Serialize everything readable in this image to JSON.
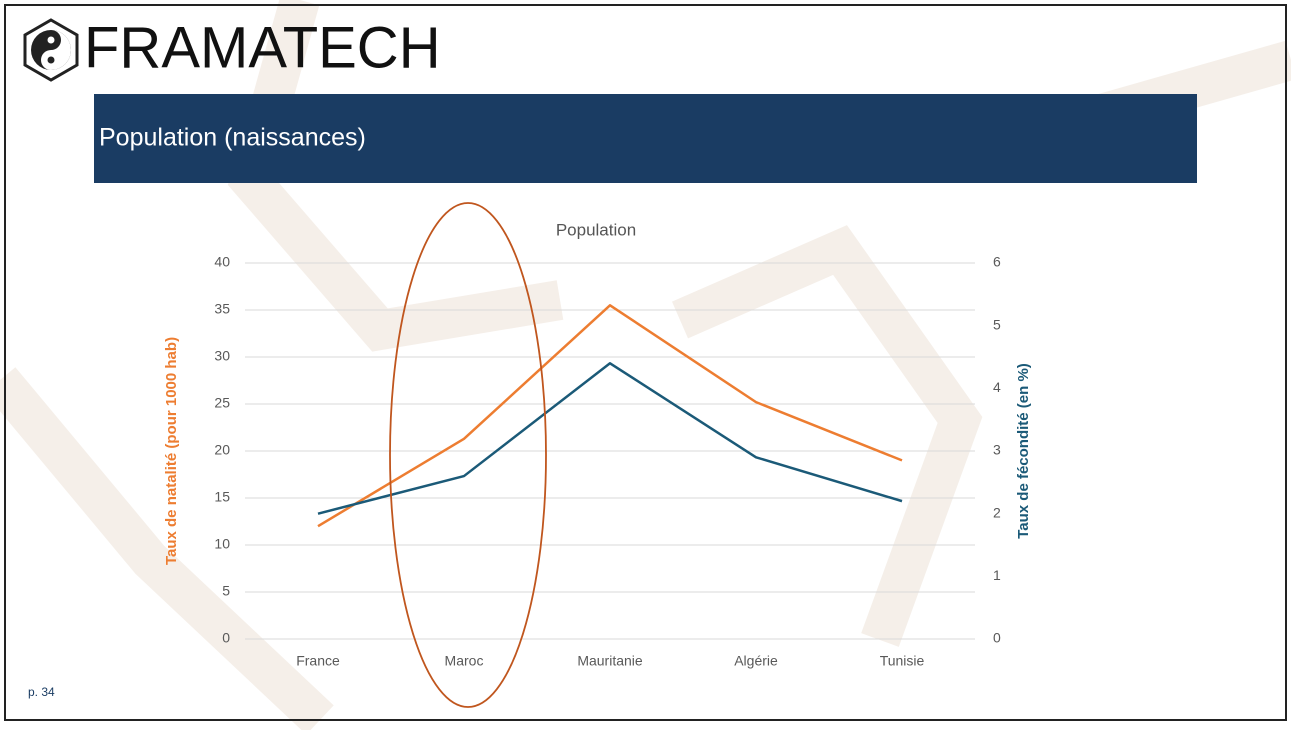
{
  "brand": "FRAMATECH",
  "slide_title": "Population (naissances)",
  "page_number": "p. 34",
  "chart_data": {
    "type": "line",
    "title": "Population",
    "categories": [
      "France",
      "Maroc",
      "Mauritanie",
      "Algérie",
      "Tunisie"
    ],
    "series": [
      {
        "name": "Taux de natalité (pour 1000 hab)",
        "color": "#ed7d31",
        "values": [
          12.0,
          21.3,
          35.5,
          25.2,
          19.0
        ]
      },
      {
        "name": "Taux de fécondité (en %)",
        "color": "#1b5a78",
        "axis": "y2",
        "values": [
          2.0,
          2.6,
          4.4,
          2.9,
          2.2
        ]
      }
    ],
    "ylabel": "Taux de natalité (pour 1000 hab)",
    "y2label": "Taux de fécondité (en %)",
    "ylim": [
      0,
      40
    ],
    "yticks": [
      0,
      5,
      10,
      15,
      20,
      25,
      30,
      35,
      40
    ],
    "y2lim": [
      0,
      6
    ],
    "y2ticks": [
      0,
      1,
      2,
      3,
      4,
      5,
      6
    ],
    "grid": true
  }
}
